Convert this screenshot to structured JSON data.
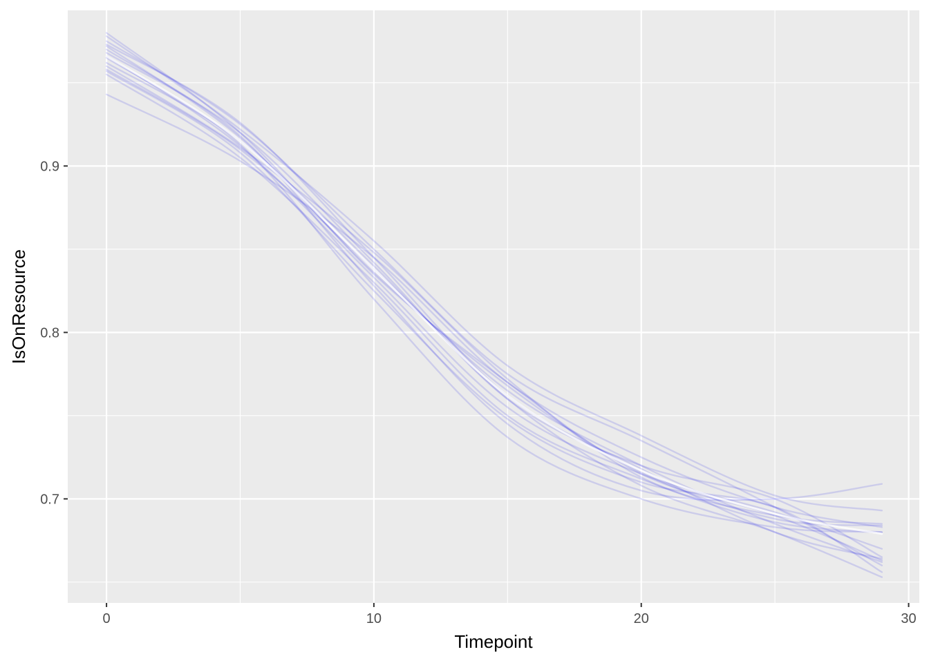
{
  "chart_data": {
    "type": "line",
    "title": "",
    "xlabel": "Timepoint",
    "ylabel": "IsOnResource",
    "xlim": [
      -1.45,
      30.4
    ],
    "ylim": [
      0.6375,
      0.9935
    ],
    "x_ticks": [
      0,
      10,
      20,
      30
    ],
    "x_tick_labels": [
      "0",
      "10",
      "20",
      "30"
    ],
    "y_ticks": [
      0.7,
      0.8,
      0.9
    ],
    "y_tick_labels": [
      "0.7",
      "0.8",
      "0.9"
    ],
    "grid": true,
    "legend": "none",
    "colors": {
      "panel_background": "#ebebeb",
      "grid": "#ffffff",
      "series": "#0000e6",
      "mean_line": "#ffffff"
    },
    "x": [
      0,
      5,
      10,
      15,
      20,
      25,
      29
    ],
    "series": [
      {
        "values": [
          0.972,
          0.917,
          0.836,
          0.768,
          0.716,
          0.688,
          0.684
        ]
      },
      {
        "values": [
          0.96,
          0.911,
          0.848,
          0.772,
          0.713,
          0.69,
          0.685
        ]
      },
      {
        "values": [
          0.968,
          0.92,
          0.842,
          0.76,
          0.72,
          0.7,
          0.665
        ]
      },
      {
        "values": [
          0.955,
          0.905,
          0.83,
          0.75,
          0.712,
          0.686,
          0.68
        ]
      },
      {
        "values": [
          0.98,
          0.92,
          0.835,
          0.77,
          0.715,
          0.69,
          0.663
        ]
      },
      {
        "values": [
          0.943,
          0.903,
          0.845,
          0.77,
          0.725,
          0.695,
          0.683
        ]
      },
      {
        "values": [
          0.975,
          0.925,
          0.85,
          0.775,
          0.735,
          0.695,
          0.66
        ]
      },
      {
        "values": [
          0.958,
          0.91,
          0.838,
          0.765,
          0.72,
          0.685,
          0.662
        ]
      },
      {
        "values": [
          0.97,
          0.918,
          0.828,
          0.745,
          0.705,
          0.7,
          0.709
        ]
      },
      {
        "values": [
          0.965,
          0.913,
          0.82,
          0.737,
          0.7,
          0.683,
          0.68
        ]
      },
      {
        "values": [
          0.962,
          0.915,
          0.84,
          0.76,
          0.708,
          0.68,
          0.653
        ]
      },
      {
        "values": [
          0.978,
          0.922,
          0.855,
          0.78,
          0.738,
          0.702,
          0.693
        ]
      },
      {
        "values": [
          0.957,
          0.908,
          0.825,
          0.748,
          0.71,
          0.695,
          0.656
        ]
      },
      {
        "values": [
          0.973,
          0.926,
          0.845,
          0.762,
          0.718,
          0.68,
          0.664
        ]
      },
      {
        "values": [
          0.966,
          0.912,
          0.833,
          0.755,
          0.715,
          0.692,
          0.67
        ]
      }
    ],
    "mean_line": {
      "values": [
        0.966,
        0.915,
        0.838,
        0.762,
        0.717,
        0.691,
        0.679
      ]
    }
  }
}
